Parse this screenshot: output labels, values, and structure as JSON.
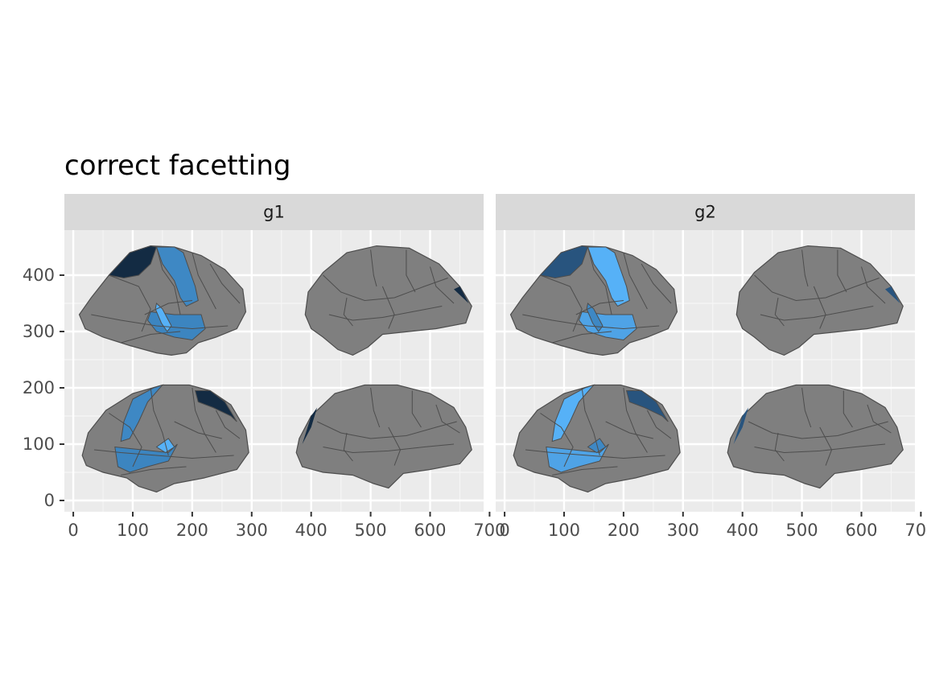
{
  "chart_data": {
    "type": "map",
    "title": "correct facetting",
    "xlabel": "",
    "ylabel": "",
    "xlim": [
      -15,
      690
    ],
    "ylim": [
      -20,
      480
    ],
    "x_ticks": [
      0,
      100,
      200,
      300,
      400,
      500,
      600,
      700
    ],
    "x_tick_labels": [
      "0",
      "100",
      "200",
      "300",
      "400",
      "500",
      "600",
      "700"
    ],
    "y_ticks": [
      0,
      100,
      200,
      300,
      400
    ],
    "y_tick_labels": [
      "0",
      "100",
      "200",
      "300",
      "400"
    ],
    "grid": true,
    "facets": [
      {
        "name": "g1",
        "highlighted_regions": [
          {
            "region": "superior parietal",
            "fill": "#132B43"
          },
          {
            "region": "precentral gyrus",
            "fill": "#3E88C4"
          },
          {
            "region": "superior temporal",
            "fill": "#3C85C0"
          },
          {
            "region": "transverse temporal",
            "fill": "#56B1F7"
          }
        ]
      },
      {
        "name": "g2",
        "highlighted_regions": [
          {
            "region": "superior parietal",
            "fill": "#28547E"
          },
          {
            "region": "precentral gyrus",
            "fill": "#56B1F7"
          },
          {
            "region": "superior temporal",
            "fill": "#4FA3E6"
          },
          {
            "region": "transverse temporal",
            "fill": "#3E88C4"
          }
        ]
      }
    ],
    "base_fill": "#7F7F7F",
    "outline_color": "#4d4d4d"
  }
}
